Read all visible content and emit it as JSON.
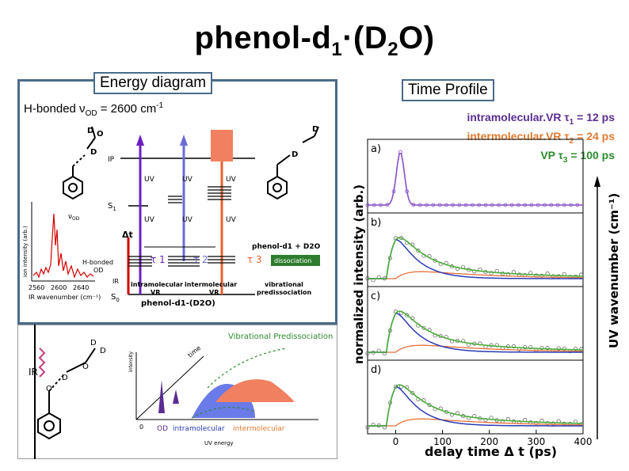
{
  "slide": {
    "title": "phenol-d",
    "title_sub": "1",
    "title_rest": "·(D",
    "title_sub2": "2",
    "title_end": "O)"
  },
  "energy": {
    "label": "Energy diagram",
    "hbond_prefix": "H-bonded ν",
    "hbond_sub": "OD",
    "hbond_value": " = 2600 cm",
    "hbond_sup": "-1",
    "ip": "IP",
    "s1": "S",
    "s1_sub": "1",
    "s0": "S",
    "s0_sub": "0",
    "ir": "IR",
    "uv": "UV",
    "dt": "Δt",
    "tau1": "τ 1",
    "tau2": "τ 2",
    "tau3": "τ 3",
    "nu_od": "ν",
    "nu_od_sub": "OD",
    "hbonded_od_1": "H-bonded",
    "hbonded_od_2": "OD",
    "intra_1": "intramolecular",
    "intra_2": "VR",
    "inter_1": "intermolecular",
    "inter_2": "VR",
    "vib_1": "vibrational",
    "vib_2": "predissociation",
    "dissociation": "dissociation",
    "product": "phenol-d1 + D2O",
    "complex": "phenol-d1-(D2O)",
    "ion_axis": "ion intensity (arb.)",
    "ir_axis": "IR wavenumber (cm⁻¹)",
    "ticks": [
      "2560",
      "2600",
      "2640"
    ]
  },
  "scheme": {
    "ir": "IR",
    "d1": "D",
    "d2": "D",
    "o1": "O",
    "o2": "O",
    "d3": "D",
    "vp": "Vibrational Predissociation",
    "time": "time",
    "intensity": "intensity",
    "od": "OD",
    "intra": "intramolecular",
    "inter": "intermolecular",
    "uv_energy": "UV energy",
    "zero": "0"
  },
  "time_profile": {
    "label": "Time Profile",
    "line1_text": "intramolecular.VR τ",
    "line1_sub": "1",
    "line1_val": " = 12 ps",
    "line2_text": "intermolecular.VR τ",
    "line2_sub": "2",
    "line2_val": " = 24 ps",
    "line3_text": "VP τ",
    "line3_sub": "3",
    "line3_val": " = 100 ps",
    "colors": {
      "intra": "#5b2d91",
      "inter": "#e07b30",
      "vp": "#2e8b2e"
    }
  },
  "chart_data": {
    "type": "line",
    "panels": [
      "a)",
      "b)",
      "c)",
      "d)"
    ],
    "xlabel": "delay time  Δ t (ps)",
    "ylabel": "normalized intensity (arb.)",
    "right_label": "UV wavenumber (cm⁻¹)",
    "xticks": [
      "0",
      "100",
      "200",
      "300",
      "400"
    ],
    "xlim": [
      -60,
      400
    ],
    "peaks": [
      {
        "panel": "a)",
        "center": 10,
        "width": 12
      },
      {
        "panel": "b)",
        "center": 25,
        "width": 30
      },
      {
        "panel": "c)",
        "center": 25,
        "width": 30
      },
      {
        "panel": "d)",
        "center": 25,
        "width": 30
      }
    ],
    "colors": {
      "data": "#8a4fc9",
      "blue": "#2a3bb5",
      "green": "#4caf3a",
      "orange": "#e8703a"
    }
  }
}
